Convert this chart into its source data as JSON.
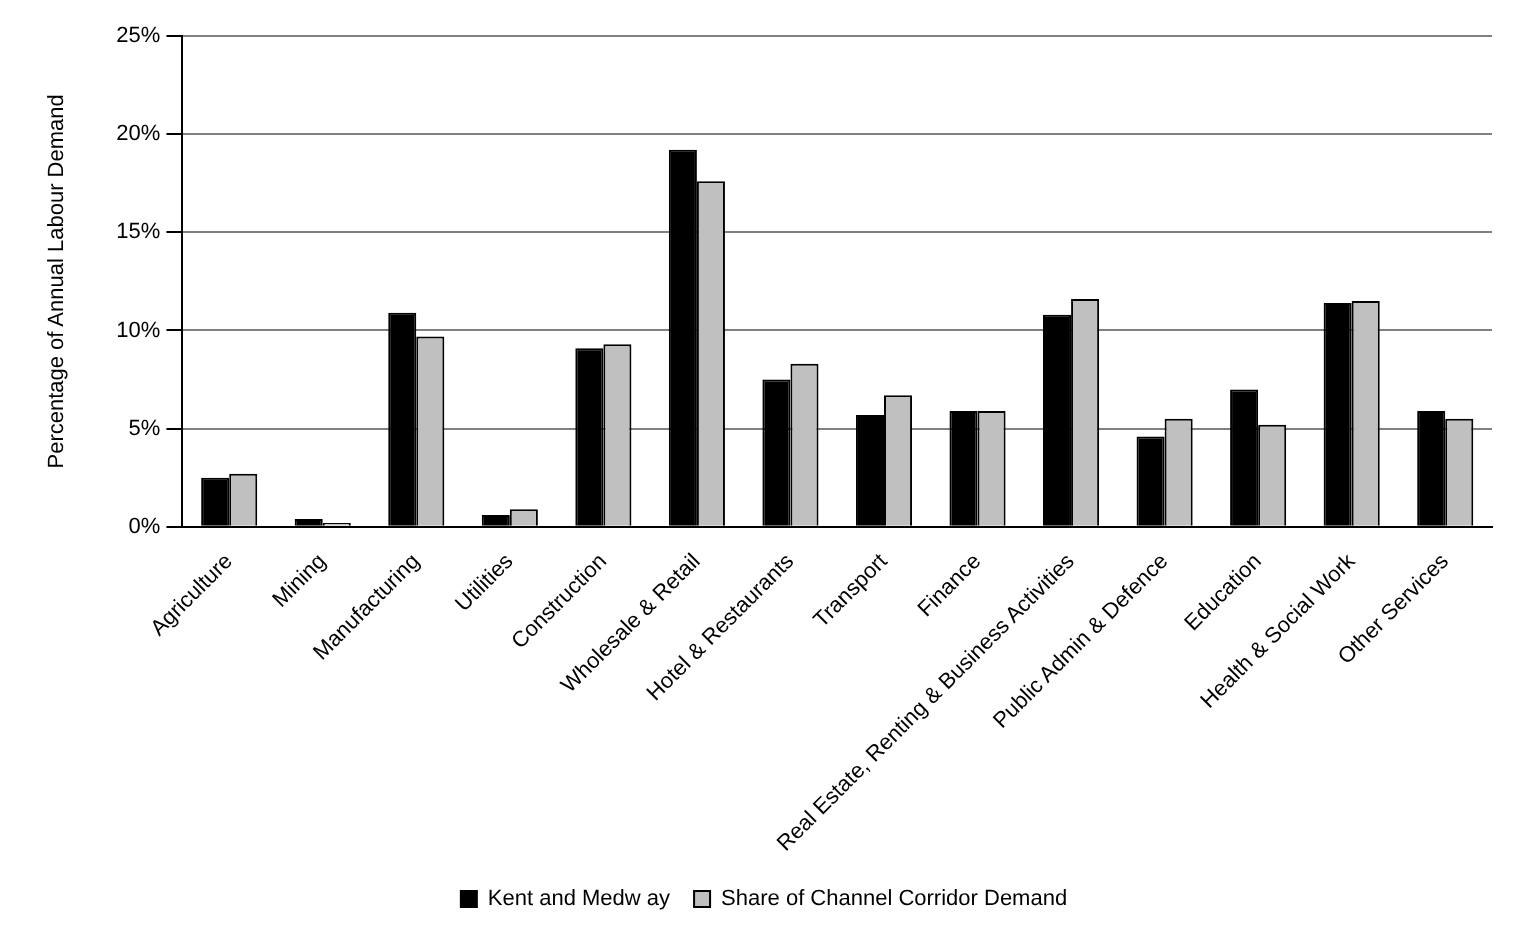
{
  "chart_data": {
    "type": "bar",
    "ylabel": "Percentage of Annual Labour Demand",
    "categories": [
      "Agriculture",
      "Mining",
      "Manufacturing",
      "Utilities",
      "Construction",
      "Wholesale & Retail",
      "Hotel & Restaurants",
      "Transport",
      "Finance",
      "Real Estate, Renting & Business Activities",
      "Public Admin & Defence",
      "Education",
      "Health & Social Work",
      "Other Services"
    ],
    "series": [
      {
        "name": "Kent and Medw ay",
        "color": "#000000",
        "values": [
          2.5,
          0.4,
          10.9,
          0.6,
          9.1,
          19.2,
          7.5,
          5.7,
          5.9,
          10.8,
          4.6,
          7.0,
          11.4,
          5.9
        ]
      },
      {
        "name": "Share of Channel Corridor Demand",
        "color": "#c0c0c0",
        "values": [
          2.7,
          0.2,
          9.7,
          0.9,
          9.3,
          17.6,
          8.3,
          6.7,
          5.9,
          11.6,
          5.5,
          5.2,
          11.5,
          5.5
        ]
      }
    ],
    "ylim": [
      0,
      25
    ],
    "yticks": [
      {
        "value": 0,
        "label": "0%"
      },
      {
        "value": 5,
        "label": "5%"
      },
      {
        "value": 10,
        "label": "10%"
      },
      {
        "value": 15,
        "label": "15%"
      },
      {
        "value": 20,
        "label": "20%"
      },
      {
        "value": 25,
        "label": "25%"
      }
    ],
    "grid": "y",
    "legend": "bottom"
  }
}
